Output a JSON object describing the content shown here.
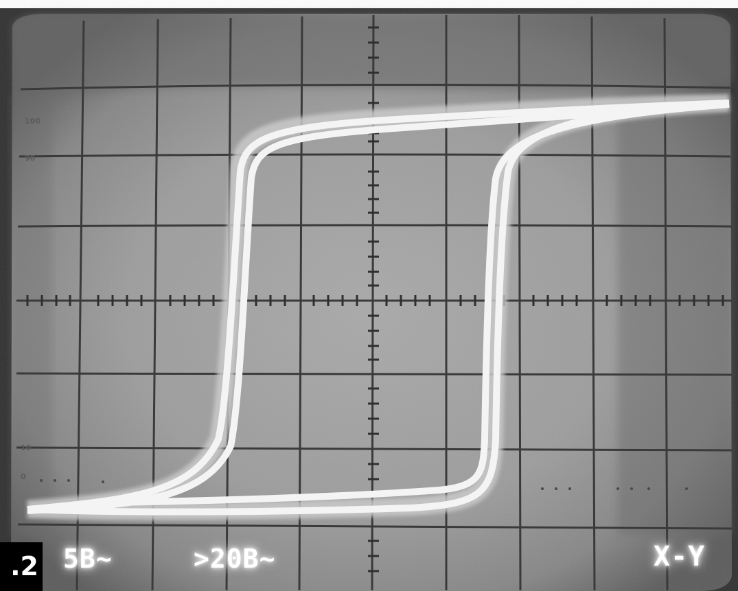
{
  "figure_tag": ".2",
  "screen_labels": {
    "channel_setting": "5B~",
    "timebase_setting": ">20B~",
    "mode": "X-Y"
  },
  "graticule_marks": [
    "100",
    "90",
    "10",
    "0"
  ],
  "colors": {
    "screen_base": "#8e8e8e",
    "screen_center": "#a5a5a5",
    "bezel": "#2e2e2e",
    "grid_line": "#3a3a3a",
    "trace_core": "#f4f4f4",
    "trace_glow": "#c9c9c9"
  }
}
